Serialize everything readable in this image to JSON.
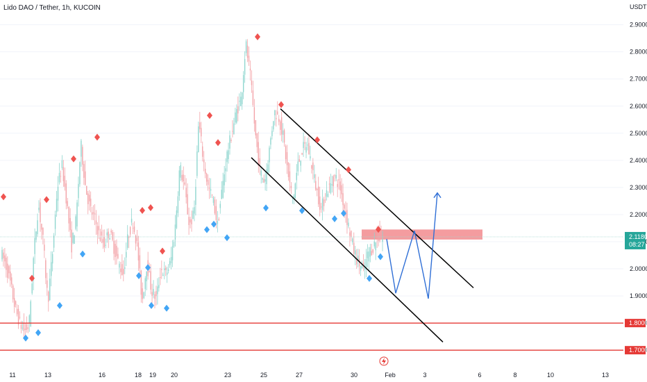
{
  "chart_data": {
    "type": "candlestick",
    "title": "Lido DAO / Tether, 1h, KUCOIN",
    "currency": "USDT",
    "ylim": [
      1.68,
      2.94
    ],
    "y_ticks": [
      "2.9000",
      "2.8000",
      "2.7000",
      "2.6000",
      "2.5000",
      "2.4000",
      "2.3000",
      "2.2000",
      "2.1000",
      "2.0000",
      "1.9000",
      "1.8000",
      "1.7000"
    ],
    "y_tick_values": [
      2.9,
      2.8,
      2.7,
      2.6,
      2.5,
      2.4,
      2.3,
      2.2,
      2.1,
      2.0,
      1.9,
      1.8,
      1.7
    ],
    "x_ticks": [
      "11",
      "13",
      "16",
      "18",
      "19",
      "20",
      "23",
      "25",
      "27",
      "30",
      "Feb",
      "3",
      "6",
      "8",
      "10",
      "13"
    ],
    "last_price": {
      "value": 2.118,
      "label": "2.1180",
      "countdown": "08:27",
      "color": "#26a69a"
    },
    "support_lines": [
      {
        "value": 1.8,
        "label": "1.8000",
        "color": "#e53935"
      },
      {
        "value": 1.7,
        "label": "1.7000",
        "color": "#e53935"
      }
    ],
    "resistance_zone": {
      "low": 2.108,
      "high": 2.145,
      "color": "#f28b8e"
    },
    "price_path": [
      2.06,
      2.02,
      1.95,
      1.86,
      1.8,
      1.77,
      1.79,
      2.05,
      2.24,
      2.1,
      1.88,
      2.06,
      2.3,
      2.38,
      2.25,
      2.08,
      2.18,
      2.46,
      2.3,
      2.22,
      2.18,
      2.12,
      2.09,
      2.14,
      2.08,
      2.02,
      1.98,
      2.12,
      2.18,
      2.08,
      1.88,
      2.02,
      1.92,
      1.89,
      2.0,
      1.98,
      2.02,
      2.15,
      2.38,
      2.3,
      2.16,
      2.2,
      2.54,
      2.4,
      2.3,
      2.26,
      2.16,
      2.3,
      2.42,
      2.5,
      2.58,
      2.63,
      2.83,
      2.7,
      2.5,
      2.36,
      2.32,
      2.44,
      2.58,
      2.56,
      2.48,
      2.34,
      2.25,
      2.38,
      2.44,
      2.46,
      2.38,
      2.29,
      2.22,
      2.28,
      2.31,
      2.34,
      2.3,
      2.22,
      2.14,
      2.06,
      2.02,
      1.99,
      2.06,
      2.08,
      2.12,
      2.11
    ],
    "swing_highs": [
      2.25,
      1.95,
      2.24,
      2.39,
      2.47,
      2.2,
      2.21,
      2.05,
      2.55,
      2.45,
      2.84,
      2.59,
      2.46,
      2.35,
      2.13
    ],
    "swing_lows": [
      1.76,
      1.78,
      1.88,
      2.07,
      1.99,
      2.02,
      1.88,
      1.87,
      2.16,
      2.18,
      2.13,
      2.24,
      2.23,
      2.2,
      2.22,
      1.98,
      2.06
    ],
    "channel_upper": {
      "from": [
        0,
        2.59
      ],
      "to": [
        1,
        1.93
      ]
    },
    "channel_lower": {
      "from": [
        0,
        2.41
      ],
      "to": [
        1,
        1.73
      ]
    },
    "projection_path": [
      2.11,
      1.91,
      2.14,
      1.89,
      2.28
    ]
  }
}
